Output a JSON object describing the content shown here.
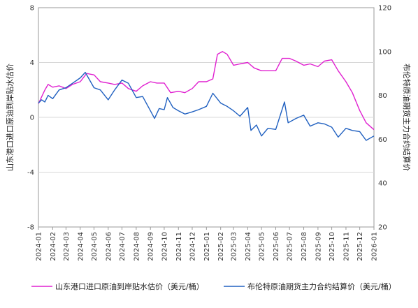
{
  "chart_data": {
    "type": "line",
    "title": "",
    "y_left": {
      "label": "山东港口进口原油到岸贴水估价",
      "range": [
        -8,
        8
      ],
      "ticks": [
        -8,
        -4,
        0,
        4,
        8
      ]
    },
    "y_right": {
      "label": "布伦特原油期货主力合约结算价",
      "range": [
        20,
        120
      ],
      "ticks": [
        20,
        40,
        60,
        80,
        100,
        120
      ]
    },
    "x": {
      "range": [
        "2024-01",
        "2026-01"
      ],
      "ticks": [
        "2024-01",
        "2024-02",
        "2024-03",
        "2024-04",
        "2024-05",
        "2024-06",
        "2024-07",
        "2024-08",
        "2024-09",
        "2024-10",
        "2024-11",
        "2024-12",
        "2025-01",
        "2025-02",
        "2025-03",
        "2025-04",
        "2025-05",
        "2025-06",
        "2025-07",
        "2025-08",
        "2025-09",
        "2025-10",
        "2025-11",
        "2025-12",
        "2026-01"
      ]
    },
    "grid": "horizontal",
    "legend_position": "bottom",
    "series": [
      {
        "name": "山东港口进口原油到岸贴水估价（美元/桶）",
        "axis": "left",
        "color": "#e020d0",
        "points": [
          [
            "2024-01-01",
            1.0
          ],
          [
            "2024-01-08",
            1.5
          ],
          [
            "2024-01-15",
            2.0
          ],
          [
            "2024-01-22",
            2.4
          ],
          [
            "2024-02-01",
            2.2
          ],
          [
            "2024-02-15",
            2.3
          ],
          [
            "2024-03-01",
            2.1
          ],
          [
            "2024-03-15",
            2.4
          ],
          [
            "2024-04-01",
            2.6
          ],
          [
            "2024-04-15",
            3.2
          ],
          [
            "2024-05-01",
            3.1
          ],
          [
            "2024-05-15",
            2.6
          ],
          [
            "2024-06-01",
            2.5
          ],
          [
            "2024-06-15",
            2.4
          ],
          [
            "2024-07-01",
            2.5
          ],
          [
            "2024-07-15",
            2.1
          ],
          [
            "2024-08-01",
            1.9
          ],
          [
            "2024-08-15",
            2.3
          ],
          [
            "2024-09-01",
            2.6
          ],
          [
            "2024-09-15",
            2.5
          ],
          [
            "2024-10-01",
            2.5
          ],
          [
            "2024-10-15",
            1.8
          ],
          [
            "2024-11-01",
            1.9
          ],
          [
            "2024-11-15",
            1.8
          ],
          [
            "2024-12-01",
            2.1
          ],
          [
            "2024-12-15",
            2.6
          ],
          [
            "2025-01-01",
            2.6
          ],
          [
            "2025-01-15",
            2.8
          ],
          [
            "2025-01-25",
            4.6
          ],
          [
            "2025-02-05",
            4.8
          ],
          [
            "2025-02-15",
            4.6
          ],
          [
            "2025-03-01",
            3.8
          ],
          [
            "2025-03-15",
            3.9
          ],
          [
            "2025-04-01",
            4.0
          ],
          [
            "2025-04-15",
            3.6
          ],
          [
            "2025-05-01",
            3.4
          ],
          [
            "2025-05-15",
            3.4
          ],
          [
            "2025-06-01",
            3.4
          ],
          [
            "2025-06-15",
            4.3
          ],
          [
            "2025-07-01",
            4.3
          ],
          [
            "2025-07-15",
            4.1
          ],
          [
            "2025-08-01",
            3.8
          ],
          [
            "2025-08-15",
            3.9
          ],
          [
            "2025-09-01",
            3.7
          ],
          [
            "2025-09-15",
            4.1
          ],
          [
            "2025-10-01",
            4.2
          ],
          [
            "2025-10-15",
            3.4
          ],
          [
            "2025-11-01",
            2.6
          ],
          [
            "2025-11-15",
            1.8
          ],
          [
            "2025-12-01",
            0.5
          ],
          [
            "2025-12-15",
            -0.4
          ],
          [
            "2026-01-01",
            -0.9
          ]
        ]
      },
      {
        "name": "布伦特原油期货主力合约结算价（美元/桶）",
        "axis": "right",
        "color": "#2060c0",
        "points": [
          [
            "2024-01-01",
            76.5
          ],
          [
            "2024-01-08",
            78.0
          ],
          [
            "2024-01-15",
            77.0
          ],
          [
            "2024-01-22",
            80.0
          ],
          [
            "2024-02-01",
            78.5
          ],
          [
            "2024-02-15",
            82.5
          ],
          [
            "2024-03-01",
            83.5
          ],
          [
            "2024-03-15",
            85.5
          ],
          [
            "2024-04-01",
            88.0
          ],
          [
            "2024-04-12",
            90.5
          ],
          [
            "2024-05-01",
            83.5
          ],
          [
            "2024-05-15",
            82.5
          ],
          [
            "2024-06-01",
            78.0
          ],
          [
            "2024-06-15",
            82.5
          ],
          [
            "2024-07-01",
            87.0
          ],
          [
            "2024-07-15",
            85.5
          ],
          [
            "2024-08-01",
            79.0
          ],
          [
            "2024-08-15",
            79.5
          ],
          [
            "2024-09-01",
            73.0
          ],
          [
            "2024-09-10",
            69.5
          ],
          [
            "2024-09-20",
            74.0
          ],
          [
            "2024-10-01",
            73.5
          ],
          [
            "2024-10-08",
            79.0
          ],
          [
            "2024-10-20",
            74.5
          ],
          [
            "2024-11-01",
            73.0
          ],
          [
            "2024-11-15",
            71.5
          ],
          [
            "2024-12-01",
            72.5
          ],
          [
            "2024-12-15",
            73.5
          ],
          [
            "2025-01-01",
            75.0
          ],
          [
            "2025-01-15",
            81.0
          ],
          [
            "2025-02-01",
            76.5
          ],
          [
            "2025-02-15",
            75.0
          ],
          [
            "2025-03-01",
            73.0
          ],
          [
            "2025-03-15",
            70.5
          ],
          [
            "2025-04-01",
            74.5
          ],
          [
            "2025-04-08",
            64.0
          ],
          [
            "2025-04-20",
            66.5
          ],
          [
            "2025-05-01",
            61.5
          ],
          [
            "2025-05-15",
            65.0
          ],
          [
            "2025-06-01",
            64.5
          ],
          [
            "2025-06-20",
            77.0
          ],
          [
            "2025-06-28",
            67.5
          ],
          [
            "2025-07-15",
            69.5
          ],
          [
            "2025-08-01",
            71.0
          ],
          [
            "2025-08-15",
            66.0
          ],
          [
            "2025-09-01",
            67.5
          ],
          [
            "2025-09-15",
            67.0
          ],
          [
            "2025-10-01",
            65.5
          ],
          [
            "2025-10-15",
            61.0
          ],
          [
            "2025-11-01",
            65.0
          ],
          [
            "2025-11-15",
            64.0
          ],
          [
            "2025-12-01",
            63.5
          ],
          [
            "2025-12-15",
            59.5
          ],
          [
            "2026-01-01",
            61.5
          ]
        ]
      }
    ]
  }
}
